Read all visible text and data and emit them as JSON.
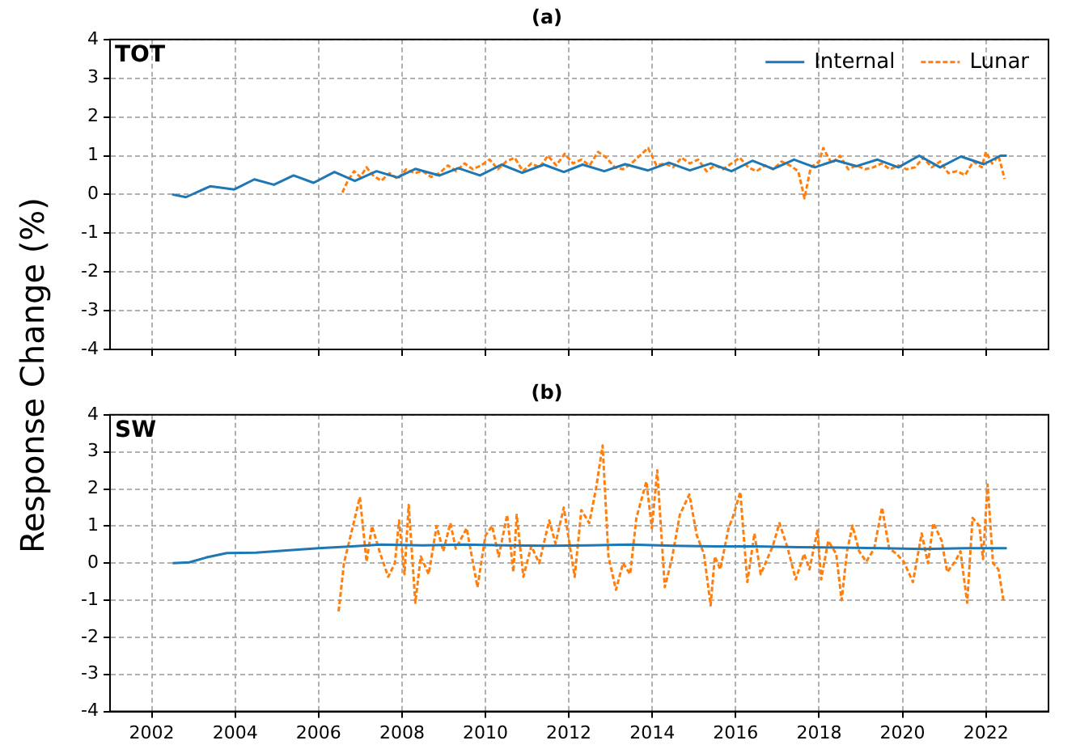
{
  "chart_data": [
    {
      "type": "line",
      "title": "(a)",
      "ylabel": "Response Change (%)",
      "annotations": [
        "TOT"
      ],
      "xlim": [
        2001,
        2023.5
      ],
      "xticks": [
        2002,
        2004,
        2006,
        2008,
        2010,
        2012,
        2014,
        2016,
        2018,
        2020,
        2022
      ],
      "ylim": [
        -4,
        4
      ],
      "yticks": [
        -4,
        -3,
        -2,
        -1,
        0,
        1,
        2,
        3,
        4
      ],
      "grid": true,
      "legend": "top right",
      "tick_labels": "y",
      "marker": "none",
      "series": [
        {
          "name": "Internal",
          "color": "#1f77b4",
          "line_style": "solid",
          "x": [
            2002.49,
            2002.82,
            2003.4,
            2003.98,
            2004.46,
            2004.93,
            2005.4,
            2005.88,
            2006.38,
            2006.87,
            2007.39,
            2007.89,
            2008.32,
            2008.9,
            2009.35,
            2009.87,
            2010.39,
            2010.88,
            2011.4,
            2011.88,
            2012.33,
            2012.85,
            2013.35,
            2013.9,
            2014.4,
            2014.9,
            2015.4,
            2015.9,
            2016.4,
            2016.9,
            2017.4,
            2017.9,
            2018.4,
            2018.9,
            2019.4,
            2019.9,
            2020.4,
            2020.9,
            2021.4,
            2021.95,
            2022.35,
            2022.5
          ],
          "values": [
            0,
            -0.07,
            0.21,
            0.13,
            0.39,
            0.25,
            0.49,
            0.3,
            0.58,
            0.35,
            0.6,
            0.44,
            0.66,
            0.49,
            0.68,
            0.49,
            0.77,
            0.56,
            0.77,
            0.58,
            0.77,
            0.6,
            0.78,
            0.62,
            0.82,
            0.62,
            0.8,
            0.6,
            0.87,
            0.66,
            0.9,
            0.7,
            0.88,
            0.73,
            0.9,
            0.7,
            1.0,
            0.7,
            0.98,
            0.78,
            1.0,
            1.0
          ]
        },
        {
          "name": "Lunar",
          "color": "#ff7f0e",
          "line_style": "dashed",
          "x": [
            2006.57,
            2006.7,
            2006.85,
            2007.0,
            2007.15,
            2007.3,
            2007.5,
            2007.7,
            2007.9,
            2008.1,
            2008.3,
            2008.5,
            2008.7,
            2008.9,
            2009.1,
            2009.3,
            2009.5,
            2009.7,
            2009.9,
            2010.1,
            2010.3,
            2010.5,
            2010.7,
            2010.9,
            2011.1,
            2011.3,
            2011.5,
            2011.7,
            2011.9,
            2012.1,
            2012.3,
            2012.5,
            2012.7,
            2012.9,
            2013.1,
            2013.3,
            2013.5,
            2013.7,
            2013.9,
            2014.1,
            2014.3,
            2014.5,
            2014.7,
            2014.9,
            2015.1,
            2015.3,
            2015.5,
            2015.7,
            2015.9,
            2016.1,
            2016.3,
            2016.5,
            2016.7,
            2016.9,
            2017.1,
            2017.3,
            2017.5,
            2017.65,
            2017.8,
            2018.0,
            2018.1,
            2018.3,
            2018.5,
            2018.7,
            2018.9,
            2019.1,
            2019.3,
            2019.5,
            2019.7,
            2019.9,
            2020.1,
            2020.3,
            2020.5,
            2020.7,
            2020.9,
            2021.1,
            2021.3,
            2021.5,
            2021.7,
            2021.9,
            2022.0,
            2022.15,
            2022.3,
            2022.45
          ],
          "values": [
            0.05,
            0.35,
            0.6,
            0.45,
            0.7,
            0.5,
            0.35,
            0.55,
            0.4,
            0.65,
            0.55,
            0.6,
            0.45,
            0.55,
            0.75,
            0.6,
            0.8,
            0.65,
            0.75,
            0.9,
            0.65,
            0.85,
            0.95,
            0.6,
            0.8,
            0.7,
            1.0,
            0.75,
            1.05,
            0.8,
            0.9,
            0.75,
            1.1,
            0.95,
            0.7,
            0.65,
            0.8,
            1.0,
            1.2,
            0.75,
            0.8,
            0.7,
            0.95,
            0.8,
            0.9,
            0.6,
            0.75,
            0.65,
            0.8,
            0.95,
            0.7,
            0.6,
            0.75,
            0.65,
            0.85,
            0.75,
            0.6,
            -0.1,
            0.7,
            0.85,
            1.2,
            0.8,
            1.0,
            0.65,
            0.75,
            0.65,
            0.7,
            0.8,
            0.65,
            0.75,
            0.65,
            0.7,
            0.95,
            0.7,
            0.85,
            0.55,
            0.6,
            0.5,
            0.85,
            0.7,
            1.1,
            0.8,
            1.0,
            0.4
          ]
        }
      ]
    },
    {
      "type": "line",
      "title": "(b)",
      "annotations": [
        "SW"
      ],
      "xlim": [
        2001,
        2023.5
      ],
      "xticks": [
        2002,
        2004,
        2006,
        2008,
        2010,
        2012,
        2014,
        2016,
        2018,
        2020,
        2022
      ],
      "ylim": [
        -4,
        4
      ],
      "yticks": [
        -4,
        -3,
        -2,
        -1,
        0,
        1,
        2,
        3,
        4
      ],
      "grid": true,
      "marker": "none",
      "series": [
        {
          "color": "#1f77b4",
          "line_style": "solid",
          "x": [
            2002.5,
            2002.9,
            2003.3,
            2003.8,
            2004.5,
            2005.3,
            2006.0,
            2006.8,
            2007.5,
            2008.5,
            2009.5,
            2010.5,
            2011.5,
            2012.5,
            2013.5,
            2014.5,
            2015.5,
            2016.5,
            2017.5,
            2018.5,
            2019.5,
            2020.5,
            2021.5,
            2022.5
          ],
          "values": [
            0,
            0.02,
            0.15,
            0.27,
            0.28,
            0.35,
            0.4,
            0.45,
            0.5,
            0.48,
            0.5,
            0.48,
            0.47,
            0.48,
            0.5,
            0.47,
            0.45,
            0.45,
            0.43,
            0.42,
            0.4,
            0.38,
            0.4,
            0.4
          ]
        },
        {
          "color": "#ff7f0e",
          "line_style": "dashed",
          "x": [
            2006.48,
            2006.61,
            2006.99,
            2007.15,
            2007.28,
            2007.48,
            2007.67,
            2007.83,
            2007.93,
            2008.06,
            2008.16,
            2008.32,
            2008.45,
            2008.64,
            2008.83,
            2008.99,
            2009.16,
            2009.29,
            2009.55,
            2009.81,
            2010.0,
            2010.16,
            2010.32,
            2010.52,
            2010.67,
            2010.75,
            2010.91,
            2011.1,
            2011.29,
            2011.53,
            2011.68,
            2011.88,
            2012.14,
            2012.3,
            2012.49,
            2012.65,
            2012.81,
            2012.95,
            2013.13,
            2013.3,
            2013.47,
            2013.62,
            2013.86,
            2013.99,
            2014.12,
            2014.3,
            2014.47,
            2014.66,
            2014.89,
            2015.07,
            2015.24,
            2015.4,
            2015.5,
            2015.63,
            2015.83,
            2015.95,
            2016.11,
            2016.28,
            2016.45,
            2016.6,
            2016.73,
            2016.89,
            2017.05,
            2017.25,
            2017.44,
            2017.64,
            2017.77,
            2017.96,
            2018.05,
            2018.22,
            2018.41,
            2018.54,
            2018.67,
            2018.8,
            2018.96,
            2019.13,
            2019.32,
            2019.51,
            2019.68,
            2019.86,
            2020.03,
            2020.25,
            2020.46,
            2020.61,
            2020.74,
            2020.94,
            2021.07,
            2021.26,
            2021.39,
            2021.55,
            2021.68,
            2021.84,
            2021.93,
            2022.04,
            2022.17,
            2022.3,
            2022.43
          ],
          "values": [
            -1.3,
            0,
            1.78,
            0.04,
            1.0,
            0.25,
            -0.37,
            0,
            1.15,
            -0.3,
            1.57,
            -1.07,
            0.18,
            -0.3,
            1.0,
            0.32,
            1.08,
            0.39,
            0.94,
            -0.65,
            0.74,
            1.0,
            0.18,
            1.3,
            -0.24,
            1.3,
            -0.37,
            0.46,
            0,
            1.15,
            0.53,
            1.5,
            -0.37,
            1.43,
            1.08,
            2.0,
            3.17,
            0.18,
            -0.72,
            0,
            -0.3,
            1.22,
            2.2,
            0.94,
            2.5,
            -0.65,
            0.11,
            1.3,
            1.85,
            0.74,
            0.25,
            -1.14,
            0.18,
            -0.17,
            0.94,
            1.3,
            1.92,
            -0.51,
            0.8,
            -0.3,
            0.04,
            0.46,
            1.08,
            0.39,
            -0.44,
            0.25,
            -0.17,
            0.88,
            -0.44,
            0.6,
            0.25,
            -1.0,
            0.32,
            1.01,
            0.32,
            0.04,
            0.39,
            1.5,
            0.39,
            0.25,
            0.04,
            -0.51,
            0.8,
            0,
            1.08,
            0.6,
            -0.24,
            0.04,
            0.32,
            -1.07,
            1.22,
            1.01,
            0.11,
            2.12,
            0,
            -0.17,
            -1.07
          ]
        }
      ]
    }
  ]
}
